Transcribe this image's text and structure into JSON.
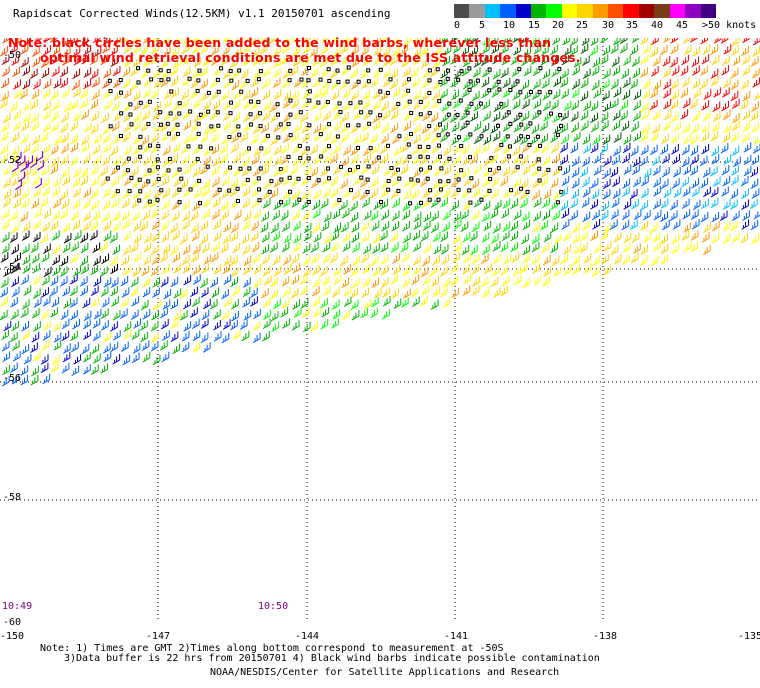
{
  "title": "Rapidscat Corrected Winds(12.5KM) v1.1 20150701 ascending",
  "note_line1": "Note: black circles have been added to the wind barbs, wherever less than",
  "note_line2": "optimal wind retrieval conditions are met due to the ISS attitude changes.",
  "legend": {
    "colors": [
      "#4d4d4d",
      "#9a9a9a",
      "#00bfff",
      "#0060ff",
      "#0000c8",
      "#00b400",
      "#00ff00",
      "#ffff00",
      "#ffd400",
      "#ff9a00",
      "#ff5000",
      "#ff0000",
      "#a00000",
      "#7a3c14",
      "#ff00ff",
      "#9000c0",
      "#400080"
    ],
    "labels": [
      "0",
      "5",
      "10",
      "15",
      "20",
      "25",
      "30",
      "35",
      "40",
      "45",
      ">50 knots"
    ]
  },
  "y_labels": [
    "-50",
    "-52",
    "-54",
    "-56",
    "-58",
    "-60"
  ],
  "x_labels": [
    "-150",
    "-147",
    "-144",
    "-141",
    "-138",
    "-135"
  ],
  "time_labels": [
    "10:49",
    "10:50"
  ],
  "footer": {
    "line1": "Note: 1) Times are GMT 2)Times along bottom correspond to measurement at -50S",
    "line2": "3)Data buffer is 22 hrs from 20150701 4) Black wind barbs indicate possible contamination",
    "line3": "NOAA/NESDIS/Center for Satellite Applications and Research"
  }
}
